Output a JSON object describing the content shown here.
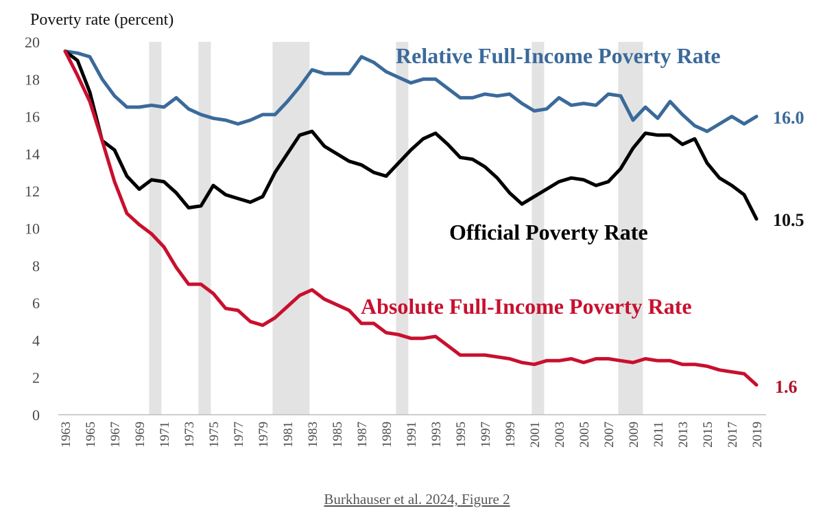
{
  "chart_data": {
    "type": "line",
    "title": "",
    "ylabel": "Poverty rate (percent)",
    "xlabel": "",
    "ylim": [
      0,
      20
    ],
    "yticks": [
      0,
      2,
      4,
      6,
      8,
      10,
      12,
      14,
      16,
      18,
      20
    ],
    "xlim": [
      1963,
      2019
    ],
    "xtick_labels": [
      "1963",
      "1965",
      "1967",
      "1969",
      "1971",
      "1973",
      "1975",
      "1977",
      "1979",
      "1981",
      "1983",
      "1985",
      "1987",
      "1989",
      "1991",
      "1993",
      "1995",
      "1997",
      "1999",
      "2001",
      "2003",
      "2005",
      "2007",
      "2009",
      "2011",
      "2013",
      "2015",
      "2017",
      "2019"
    ],
    "recession_shading": [
      [
        1969.8,
        1970.8
      ],
      [
        1973.8,
        1974.8
      ],
      [
        1979.8,
        1982.8
      ],
      [
        1989.8,
        1990.8
      ],
      [
        2000.8,
        2001.8
      ],
      [
        2007.8,
        2009.8
      ]
    ],
    "series": [
      {
        "name": "Relative Full-Income Poverty Rate",
        "color": "#3b6a9a",
        "end_label": "16.0",
        "x": [
          1963,
          1964,
          1965,
          1966,
          1967,
          1968,
          1969,
          1970,
          1971,
          1972,
          1973,
          1974,
          1975,
          1976,
          1977,
          1978,
          1979,
          1980,
          1981,
          1982,
          1983,
          1984,
          1985,
          1986,
          1987,
          1988,
          1989,
          1990,
          1991,
          1992,
          1993,
          1994,
          1995,
          1996,
          1997,
          1998,
          1999,
          2000,
          2001,
          2002,
          2003,
          2004,
          2005,
          2006,
          2007,
          2008,
          2009,
          2010,
          2011,
          2012,
          2013,
          2014,
          2015,
          2016,
          2017,
          2018,
          2019
        ],
        "values": [
          19.5,
          19.4,
          19.2,
          18.0,
          17.1,
          16.5,
          16.5,
          16.6,
          16.5,
          17.0,
          16.4,
          16.1,
          15.9,
          15.8,
          15.6,
          15.8,
          16.1,
          16.1,
          16.8,
          17.6,
          18.5,
          18.3,
          18.3,
          18.3,
          19.2,
          18.9,
          18.4,
          18.1,
          17.8,
          18.0,
          18.0,
          17.5,
          17.0,
          17.0,
          17.2,
          17.1,
          17.2,
          16.7,
          16.3,
          16.4,
          17.0,
          16.6,
          16.7,
          16.6,
          17.2,
          17.1,
          15.8,
          16.5,
          15.9,
          16.8,
          16.1,
          15.5,
          15.2,
          15.6,
          16.0,
          15.6,
          16.0
        ]
      },
      {
        "name": "Official Poverty Rate",
        "color": "#000000",
        "end_label": "10.5",
        "x": [
          1963,
          1964,
          1965,
          1966,
          1967,
          1968,
          1969,
          1970,
          1971,
          1972,
          1973,
          1974,
          1975,
          1976,
          1977,
          1978,
          1979,
          1980,
          1981,
          1982,
          1983,
          1984,
          1985,
          1986,
          1987,
          1988,
          1989,
          1990,
          1991,
          1992,
          1993,
          1994,
          1995,
          1996,
          1997,
          1998,
          1999,
          2000,
          2001,
          2002,
          2003,
          2004,
          2005,
          2006,
          2007,
          2008,
          2009,
          2010,
          2011,
          2012,
          2013,
          2014,
          2015,
          2016,
          2017,
          2018,
          2019
        ],
        "values": [
          19.5,
          19.0,
          17.3,
          14.7,
          14.2,
          12.8,
          12.1,
          12.6,
          12.5,
          11.9,
          11.1,
          11.2,
          12.3,
          11.8,
          11.6,
          11.4,
          11.7,
          13.0,
          14.0,
          15.0,
          15.2,
          14.4,
          14.0,
          13.6,
          13.4,
          13.0,
          12.8,
          13.5,
          14.2,
          14.8,
          15.1,
          14.5,
          13.8,
          13.7,
          13.3,
          12.7,
          11.9,
          11.3,
          11.7,
          12.1,
          12.5,
          12.7,
          12.6,
          12.3,
          12.5,
          13.2,
          14.3,
          15.1,
          15.0,
          15.0,
          14.5,
          14.8,
          13.5,
          12.7,
          12.3,
          11.8,
          10.5
        ]
      },
      {
        "name": "Absolute Full-Income Poverty Rate",
        "color": "#c8102e",
        "end_label": "1.6",
        "x": [
          1963,
          1964,
          1965,
          1966,
          1967,
          1968,
          1969,
          1970,
          1971,
          1972,
          1973,
          1974,
          1975,
          1976,
          1977,
          1978,
          1979,
          1980,
          1981,
          1982,
          1983,
          1984,
          1985,
          1986,
          1987,
          1988,
          1989,
          1990,
          1991,
          1992,
          1993,
          1994,
          1995,
          1996,
          1997,
          1998,
          1999,
          2000,
          2001,
          2002,
          2003,
          2004,
          2005,
          2006,
          2007,
          2008,
          2009,
          2010,
          2011,
          2012,
          2013,
          2014,
          2015,
          2016,
          2017,
          2018,
          2019
        ],
        "values": [
          19.5,
          18.2,
          16.8,
          14.7,
          12.5,
          10.8,
          10.2,
          9.7,
          9.0,
          7.9,
          7.0,
          7.0,
          6.5,
          5.7,
          5.6,
          5.0,
          4.8,
          5.2,
          5.8,
          6.4,
          6.7,
          6.2,
          5.9,
          5.6,
          4.9,
          4.9,
          4.4,
          4.3,
          4.1,
          4.1,
          4.2,
          3.7,
          3.2,
          3.2,
          3.2,
          3.1,
          3.0,
          2.8,
          2.7,
          2.9,
          2.9,
          3.0,
          2.8,
          3.0,
          3.0,
          2.9,
          2.8,
          3.0,
          2.9,
          2.9,
          2.7,
          2.7,
          2.6,
          2.4,
          2.3,
          2.2,
          1.6
        ]
      }
    ],
    "caption": "Burkhauser et al. 2024, Figure 2"
  },
  "colors": {
    "recession": "#e3e3e3",
    "relative": "#3b6a9a",
    "official": "#000000",
    "absolute": "#c8102e",
    "end_absolute": "#b01428"
  }
}
